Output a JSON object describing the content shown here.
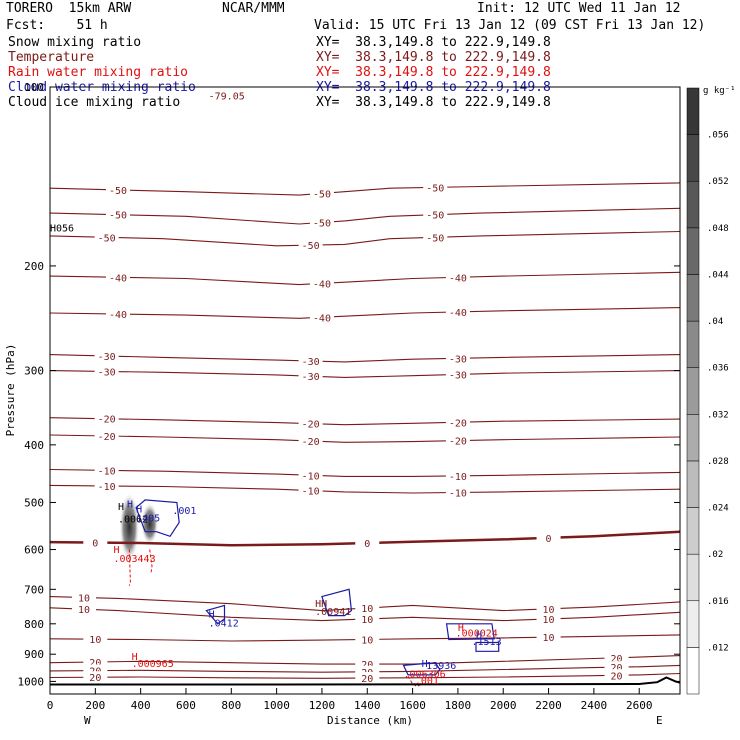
{
  "header": {
    "model": "TORERO  15km ARW",
    "center": "NCAR/MMM",
    "init": "Init: 12 UTC Wed 11 Jan 12",
    "fcst": "Fcst:    51 h",
    "valid": "Valid: 15 UTC Fri 13 Jan 12 (09 CST Fri 13 Jan 12)"
  },
  "fields": [
    {
      "name": "Snow mixing ratio",
      "color": "#000000",
      "xy": "XY=  38.3,149.8 to 222.9,149.8"
    },
    {
      "name": "Temperature",
      "color": "#7a1a1a",
      "xy": "XY=  38.3,149.8 to 222.9,149.8"
    },
    {
      "name": "Rain water mixing ratio",
      "color": "#e01010",
      "xy": "XY=  38.3,149.8 to 222.9,149.8"
    },
    {
      "name": "Cloud water mixing ratio",
      "color": "#1a1aa8",
      "xy": "XY=  38.3,149.8 to 222.9,149.8"
    },
    {
      "name": "Cloud ice mixing ratio",
      "color": "#000000",
      "xy": "XY=  38.3,149.8 to 222.9,149.8"
    }
  ],
  "colors": {
    "temperature": "#7a1a1a",
    "rain": "#e01010",
    "cloud_water": "#1a1aa8",
    "terrain": "#000000"
  },
  "chart_data": {
    "type": "contour-cross-section",
    "xlabel": "Distance (km)",
    "ylabel": "Pressure (hPa)",
    "xlim": [
      0,
      2780
    ],
    "ylim": [
      1050,
      100
    ],
    "yscale": "log",
    "x_ticks": [
      0,
      200,
      400,
      600,
      800,
      1000,
      1200,
      1400,
      1600,
      1800,
      2000,
      2200,
      2400,
      2600
    ],
    "y_ticks": [
      100,
      200,
      300,
      400,
      500,
      600,
      700,
      800,
      900,
      1000
    ],
    "x_end_labels": {
      "left": "W",
      "right": "E"
    },
    "colorbar": {
      "unit": "g kg⁻¹",
      "values": [
        0.012,
        0.016,
        0.02,
        0.024,
        0.028,
        0.032,
        0.036,
        0.04,
        0.044,
        0.048,
        0.052,
        0.056
      ],
      "labels": [
        ".012",
        ".016",
        ".02",
        ".024",
        ".028",
        ".032",
        ".036",
        ".04",
        ".044",
        ".048",
        ".052",
        ".056"
      ]
    },
    "temperature_contours": [
      {
        "label": "-50",
        "x": [
          0,
          600,
          1100,
          1300,
          1500,
          1900,
          2780
        ],
        "p": [
          148,
          150,
          152,
          150,
          148,
          147,
          145
        ]
      },
      {
        "label": "-50",
        "x": [
          0,
          600,
          1100,
          1300,
          1500,
          1900,
          2780
        ],
        "p": [
          163,
          165,
          170,
          168,
          165,
          163,
          160
        ]
      },
      {
        "label": "-50",
        "x": [
          0,
          500,
          1000,
          1300,
          1500,
          1900,
          2780
        ],
        "p": [
          178,
          180,
          185,
          184,
          180,
          178,
          175
        ]
      },
      {
        "label": "-40",
        "x": [
          0,
          600,
          1100,
          1300,
          1600,
          2000,
          2780
        ],
        "p": [
          208,
          210,
          215,
          213,
          210,
          208,
          205
        ]
      },
      {
        "label": "-40",
        "x": [
          0,
          600,
          1100,
          1300,
          1600,
          2000,
          2780
        ],
        "p": [
          240,
          242,
          245,
          243,
          240,
          238,
          235
        ]
      },
      {
        "label": "-30",
        "x": [
          0,
          500,
          1000,
          1300,
          1600,
          2000,
          2780
        ],
        "p": [
          282,
          285,
          288,
          290,
          287,
          285,
          282
        ]
      },
      {
        "label": "-30",
        "x": [
          0,
          500,
          1000,
          1300,
          1600,
          2000,
          2780
        ],
        "p": [
          300,
          302,
          305,
          308,
          306,
          303,
          300
        ]
      },
      {
        "label": "-20",
        "x": [
          0,
          500,
          1000,
          1300,
          1600,
          2000,
          2780
        ],
        "p": [
          360,
          363,
          367,
          370,
          368,
          365,
          362
        ]
      },
      {
        "label": "-20",
        "x": [
          0,
          500,
          1000,
          1300,
          1600,
          2000,
          2780
        ],
        "p": [
          385,
          388,
          392,
          396,
          395,
          392,
          388
        ]
      },
      {
        "label": "-10",
        "x": [
          0,
          500,
          1000,
          1300,
          1600,
          2000,
          2780
        ],
        "p": [
          440,
          443,
          448,
          452,
          452,
          450,
          445
        ]
      },
      {
        "label": "-10",
        "x": [
          0,
          500,
          1000,
          1300,
          1600,
          2000,
          2780
        ],
        "p": [
          468,
          470,
          475,
          480,
          482,
          480,
          475
        ]
      },
      {
        "label": "0",
        "x": [
          0,
          400,
          800,
          1200,
          1600,
          2000,
          2400,
          2780
        ],
        "p": [
          583,
          585,
          590,
          588,
          582,
          577,
          570,
          560
        ]
      },
      {
        "label": "10",
        "x": [
          0,
          300,
          800,
          1200,
          1600,
          2000,
          2400,
          2780
        ],
        "p": [
          720,
          725,
          740,
          760,
          745,
          760,
          750,
          735
        ]
      },
      {
        "label": "10",
        "x": [
          0,
          300,
          800,
          1200,
          1600,
          2000,
          2400,
          2780
        ],
        "p": [
          752,
          760,
          780,
          790,
          780,
          790,
          780,
          765
        ]
      },
      {
        "label": "10",
        "x": [
          0,
          400,
          800,
          1200,
          1600,
          2000,
          2400,
          2780
        ],
        "p": [
          848,
          850,
          855,
          852,
          848,
          845,
          840,
          835
        ]
      },
      {
        "label": "20",
        "x": [
          0,
          400,
          800,
          1200,
          1600,
          2000,
          2400,
          2600,
          2780
        ],
        "p": [
          930,
          925,
          930,
          935,
          935,
          925,
          915,
          910,
          905
        ]
      },
      {
        "label": "20",
        "x": [
          0,
          400,
          800,
          1200,
          1600,
          2000,
          2400,
          2600,
          2780
        ],
        "p": [
          960,
          958,
          962,
          965,
          962,
          955,
          948,
          945,
          940
        ]
      },
      {
        "label": "20",
        "x": [
          0,
          400,
          800,
          1200,
          1600,
          2000,
          2400,
          2600,
          2780
        ],
        "p": [
          985,
          983,
          986,
          988,
          986,
          983,
          978,
          975,
          970
        ]
      }
    ],
    "terrain": {
      "x": [
        0,
        1000,
        2000,
        2600,
        2680,
        2720,
        2760,
        2780
      ],
      "p": [
        1012,
        1012,
        1011,
        1010,
        1003,
        985,
        1000,
        1005
      ]
    },
    "snow_cores": [
      {
        "x": 350,
        "p_top": 480,
        "p_bottom": 630,
        "peak": 0.056
      },
      {
        "x": 440,
        "p_top": 500,
        "p_bottom": 590,
        "peak": 0.04
      }
    ],
    "annotations": [
      {
        "text": "H",
        "x": 300,
        "p": 515,
        "color": "#000000"
      },
      {
        "text": ".0062",
        "x": 300,
        "p": 540,
        "color": "#000000"
      },
      {
        "text": "H",
        "x": 340,
        "p": 510,
        "color": "#1a1aa8"
      },
      {
        "text": "H",
        "x": 380,
        "p": 520,
        "color": "#1a1aa8"
      },
      {
        "text": "1405",
        "x": 380,
        "p": 538,
        "color": "#1a1aa8"
      },
      {
        "text": ".001",
        "x": 540,
        "p": 523,
        "color": "#1a1aa8"
      },
      {
        "text": "H",
        "x": 280,
        "p": 608,
        "color": "#e01010"
      },
      {
        "text": ".003443",
        "x": 280,
        "p": 630,
        "color": "#e01010"
      },
      {
        "text": "H",
        "x": 700,
        "p": 780,
        "color": "#1a1aa8"
      },
      {
        "text": ".0412",
        "x": 700,
        "p": 808,
        "color": "#1a1aa8"
      },
      {
        "text": "HH",
        "x": 1170,
        "p": 750,
        "color": "#7a1a1a"
      },
      {
        "text": ".00941",
        "x": 1170,
        "p": 773,
        "color": "#7a1a1a"
      },
      {
        "text": "H",
        "x": 1800,
        "p": 822,
        "color": "#e01010"
      },
      {
        "text": ".000024",
        "x": 1790,
        "p": 840,
        "color": "#e01010"
      },
      {
        "text": "H",
        "x": 1880,
        "p": 845,
        "color": "#1a1aa8"
      },
      {
        "text": ".1513",
        "x": 1860,
        "p": 868,
        "color": "#1a1aa8"
      },
      {
        "text": "H",
        "x": 360,
        "p": 920,
        "color": "#e01010"
      },
      {
        "text": ".000965",
        "x": 360,
        "p": 945,
        "color": "#e01010"
      },
      {
        "text": "H",
        "x": 1640,
        "p": 945,
        "color": "#1a1aa8"
      },
      {
        "text": "13936",
        "x": 1660,
        "p": 953,
        "color": "#1a1aa8"
      },
      {
        "text": ".006306",
        "x": 1560,
        "p": 985,
        "color": "#e01010"
      },
      {
        "text": ".001",
        "x": 1610,
        "p": 1010,
        "color": "#e01010"
      },
      {
        "text": "-79.05",
        "x": 700,
        "p": 105,
        "color": "#7a1a1a"
      },
      {
        "text": "H056",
        "x": 0,
        "p": 175,
        "color": "#000000"
      }
    ],
    "cloud_water_outlines": [
      {
        "x": [
          380,
          420,
          560,
          570,
          530,
          470,
          420,
          380
        ],
        "p": [
          510,
          495,
          500,
          540,
          570,
          560,
          560,
          510
        ]
      },
      {
        "x": [
          690,
          770,
          770,
          740,
          690
        ],
        "p": [
          760,
          745,
          785,
          800,
          760
        ]
      },
      {
        "x": [
          1200,
          1320,
          1330,
          1300,
          1230,
          1200
        ],
        "p": [
          720,
          700,
          760,
          775,
          775,
          720
        ]
      },
      {
        "x": [
          1750,
          1950,
          1960,
          1760,
          1750
        ],
        "p": [
          800,
          800,
          848,
          850,
          800
        ]
      },
      {
        "x": [
          1880,
          1980,
          1980,
          1880,
          1880
        ],
        "p": [
          860,
          860,
          890,
          890,
          860
        ]
      },
      {
        "x": [
          1560,
          1700,
          1720,
          1700,
          1580,
          1560
        ],
        "p": [
          940,
          930,
          955,
          975,
          975,
          940
        ]
      }
    ],
    "rain_outlines": [
      {
        "x": [
          350,
          355,
          350
        ],
        "p": [
          600,
          680,
          690
        ]
      },
      {
        "x": [
          440,
          450,
          445
        ],
        "p": [
          600,
          640,
          660
        ]
      },
      {
        "x": [
          1580,
          1600,
          1620,
          1640
        ],
        "p": [
          980,
          1010,
          1020,
          1010
        ]
      }
    ]
  }
}
